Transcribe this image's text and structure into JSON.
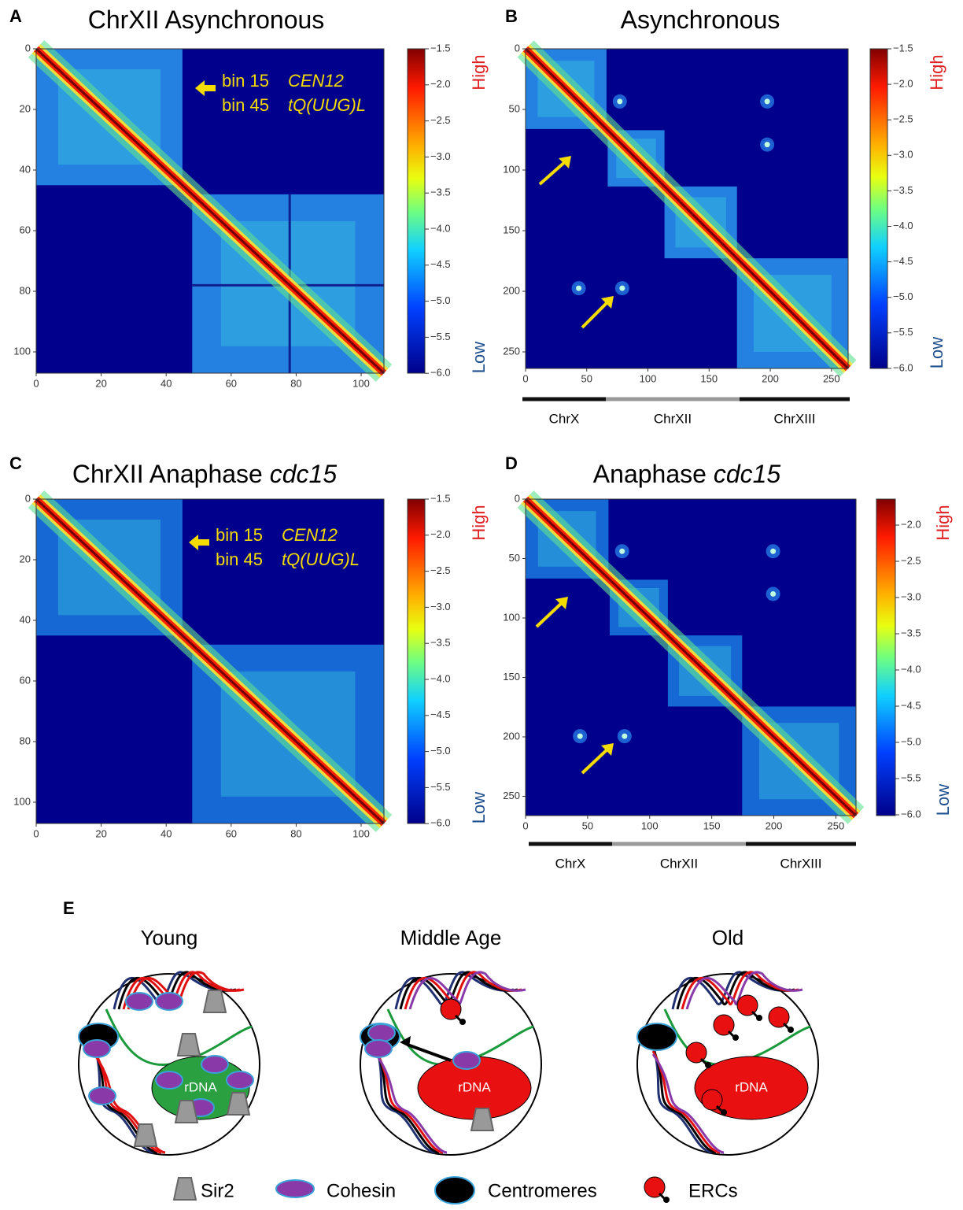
{
  "panels": [
    {
      "letter": "A",
      "title": "ChrXII Asynchronous",
      "title_italic": null,
      "xticks": [
        0,
        20,
        40,
        60,
        80,
        100
      ],
      "yticks": [
        0,
        20,
        40,
        60,
        80,
        100
      ],
      "colorbar_labels": [
        "−1.5",
        "−2.0",
        "−2.5",
        "−3.0",
        "−3.5",
        "−4.0",
        "−4.5",
        "−5.0",
        "−5.5",
        "−6.0"
      ],
      "high": "High",
      "low": "Low",
      "annotation": [
        "bin 15",
        "CEN12",
        "bin 45",
        "tQ(UUG)L"
      ],
      "chromosomes": null
    },
    {
      "letter": "B",
      "title": "Asynchronous",
      "title_italic": null,
      "xticks": [
        0,
        50,
        100,
        150,
        200,
        250
      ],
      "yticks": [
        0,
        50,
        100,
        150,
        200,
        250
      ],
      "colorbar_labels": [
        "−1.5",
        "−2.0",
        "−2.5",
        "−3.0",
        "−3.5",
        "−4.0",
        "−4.5",
        "−5.0",
        "−5.5",
        "−6.0"
      ],
      "high": "High",
      "low": "Low",
      "annotation": null,
      "chromosomes": [
        "ChrX",
        "ChrXII",
        "ChrXIII"
      ]
    },
    {
      "letter": "C",
      "title": "ChrXII Anaphase",
      "title_italic": "cdc15",
      "xticks": [
        0,
        20,
        40,
        60,
        80,
        100
      ],
      "yticks": [
        0,
        20,
        40,
        60,
        80,
        100
      ],
      "colorbar_labels": [
        "−1.5",
        "−2.0",
        "−2.5",
        "−3.0",
        "−3.5",
        "−4.0",
        "−4.5",
        "−5.0",
        "−5.5",
        "−6.0"
      ],
      "high": "High",
      "low": "Low",
      "annotation": [
        "bin 15",
        "CEN12",
        "bin 45",
        "tQ(UUG)L"
      ],
      "chromosomes": null
    },
    {
      "letter": "D",
      "title": "Anaphase",
      "title_italic": "cdc15",
      "xticks": [
        0,
        50,
        100,
        150,
        200,
        250
      ],
      "yticks": [
        0,
        50,
        100,
        150,
        200,
        250
      ],
      "colorbar_labels": [
        "−2.0",
        "−2.5",
        "−3.0",
        "−3.5",
        "−4.0",
        "−4.5",
        "−5.0",
        "−5.5",
        "−6.0"
      ],
      "high": "High",
      "low": "Low",
      "annotation": null,
      "chromosomes": [
        "ChrX",
        "ChrXII",
        "ChrXIII"
      ]
    }
  ],
  "panel_e": {
    "letter": "E",
    "stages": [
      "Young",
      "Middle Age",
      "Old"
    ],
    "rdna_labels": [
      "rDNA",
      "rDNA",
      "rDNA"
    ],
    "legend": [
      "Sir2",
      "Cohesin",
      "Centromeres",
      "ERCs"
    ]
  }
}
